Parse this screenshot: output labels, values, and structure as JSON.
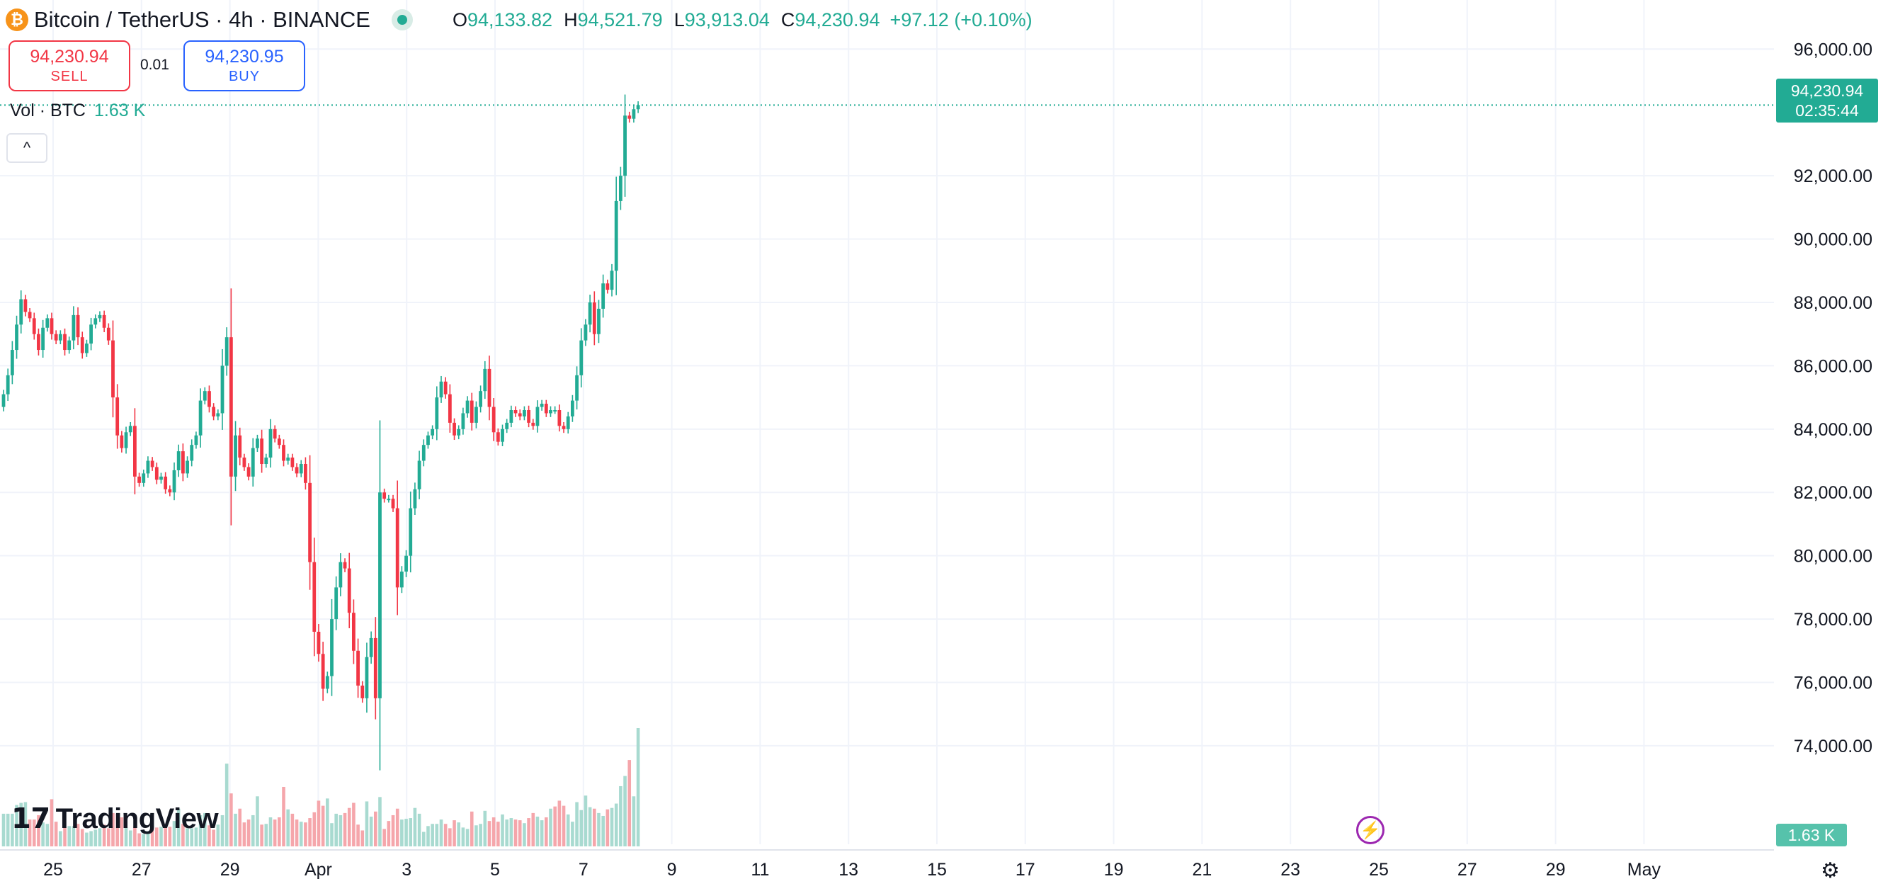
{
  "header": {
    "coin_symbol": "₿",
    "title": "Bitcoin / TetherUS · 4h · BINANCE",
    "ohlc": [
      {
        "key": "O",
        "value": "94,133.82"
      },
      {
        "key": "H",
        "value": "94,521.79"
      },
      {
        "key": "L",
        "value": "93,913.04"
      },
      {
        "key": "C",
        "value": "94,230.94"
      }
    ],
    "change": "+97.12 (+0.10%)"
  },
  "trade": {
    "sell_price": "94,230.94",
    "sell_label": "SELL",
    "spread": "0.01",
    "buy_price": "94,230.95",
    "buy_label": "BUY"
  },
  "volume_legend": {
    "label": "Vol · BTC",
    "value": "1.63 K"
  },
  "collapse_icon": "^",
  "logo": {
    "mark": "𝟭𝟳",
    "text": "TradingView"
  },
  "price_tag": {
    "price": "94,230.94",
    "countdown": "02:35:44"
  },
  "volume_tag": "1.63 K",
  "settings_icon": "⚙",
  "bolt_icon": "⚡",
  "colors": {
    "up": "#22ab94",
    "down": "#f23645",
    "up_vol": "#a8dad0",
    "down_vol": "#f5a6ab",
    "grid": "#f0f3fa"
  },
  "chart_data": {
    "type": "candlestick",
    "interval": "4h",
    "ylim": [
      72500,
      96700
    ],
    "y_ticks": [
      "96,000.00",
      "92,000.00",
      "90,000.00",
      "88,000.00",
      "86,000.00",
      "84,000.00",
      "82,000.00",
      "80,000.00",
      "78,000.00",
      "76,000.00",
      "74,000.00"
    ],
    "x_ticks": [
      "25",
      "27",
      "29",
      "Apr",
      "3",
      "5",
      "7",
      "9",
      "11",
      "13",
      "15",
      "17",
      "19",
      "21",
      "23",
      "25",
      "27",
      "29",
      "May"
    ],
    "last_price": 94230.94,
    "closes": [
      85100,
      85700,
      86500,
      87300,
      88100,
      87700,
      87500,
      87000,
      86500,
      87200,
      87500,
      87000,
      86800,
      87000,
      86500,
      86800,
      87600,
      86900,
      86400,
      86700,
      87300,
      87500,
      87600,
      87200,
      86800,
      85000,
      83800,
      83400,
      83900,
      84100,
      82500,
      82300,
      82600,
      83000,
      82800,
      82400,
      82500,
      82100,
      82000,
      82700,
      83300,
      82600,
      83000,
      83500,
      83800,
      84900,
      85200,
      84700,
      84400,
      84500,
      86000,
      86900,
      82500,
      83800,
      83100,
      82800,
      82500,
      83400,
      83700,
      82900,
      83100,
      84000,
      83700,
      83500,
      83000,
      83100,
      82800,
      82600,
      82900,
      82300,
      79800,
      77600,
      76900,
      75800,
      76200,
      78000,
      79000,
      79800,
      79600,
      78200,
      77000,
      75900,
      75500,
      76800,
      77400,
      75500,
      82000,
      81800,
      81800,
      81500,
      79000,
      79500,
      80000,
      81500,
      82100,
      83000,
      83500,
      83800,
      84000,
      85000,
      85500,
      85100,
      84200,
      83800,
      84000,
      84500,
      84900,
      84200,
      84700,
      85200,
      85900,
      84700,
      83900,
      83600,
      84000,
      84200,
      84600,
      84500,
      84400,
      84600,
      84200,
      84100,
      84700,
      84800,
      84500,
      84600,
      84600,
      84100,
      84000,
      84400,
      84900,
      85700,
      86800,
      87300,
      88000,
      87000,
      87800,
      88600,
      88400,
      89000,
      91200,
      92000,
      93900,
      93800,
      94100,
      94230.94
    ],
    "volumes_k": [
      0.45,
      0.45,
      0.45,
      0.57,
      0.6,
      0.61,
      0.37,
      0.37,
      0.43,
      0.33,
      0.31,
      0.65,
      0.34,
      0.21,
      0.26,
      0.28,
      0.28,
      0.31,
      0.24,
      0.19,
      0.21,
      0.23,
      0.25,
      0.3,
      0.25,
      0.46,
      0.45,
      0.4,
      0.26,
      0.22,
      0.27,
      0.18,
      0.17,
      0.21,
      0.25,
      0.26,
      0.27,
      0.31,
      0.27,
      0.35,
      0.52,
      0.31,
      0.25,
      0.25,
      0.26,
      0.43,
      0.46,
      0.29,
      0.23,
      0.3,
      0.43,
      1.14,
      0.73,
      0.45,
      0.52,
      0.33,
      0.37,
      0.43,
      0.69,
      0.3,
      0.31,
      0.4,
      0.37,
      0.4,
      0.82,
      0.51,
      0.45,
      0.37,
      0.34,
      0.33,
      0.39,
      0.47,
      0.63,
      0.56,
      0.66,
      0.32,
      0.45,
      0.43,
      0.46,
      0.53,
      0.6,
      0.3,
      0.22,
      0.62,
      0.41,
      0.48,
      0.68,
      0.24,
      0.35,
      0.43,
      0.52,
      0.37,
      0.38,
      0.39,
      0.53,
      0.45,
      0.2,
      0.28,
      0.31,
      0.31,
      0.37,
      0.31,
      0.25,
      0.36,
      0.33,
      0.26,
      0.24,
      0.48,
      0.29,
      0.31,
      0.49,
      0.35,
      0.4,
      0.34,
      0.44,
      0.37,
      0.39,
      0.37,
      0.36,
      0.32,
      0.39,
      0.46,
      0.41,
      0.36,
      0.4,
      0.52,
      0.55,
      0.63,
      0.56,
      0.44,
      0.34,
      0.61,
      0.5,
      0.7,
      0.54,
      0.52,
      0.46,
      0.42,
      0.51,
      0.53,
      0.59,
      0.83,
      0.97,
      1.19,
      0.69,
      1.63
    ],
    "volume_colors": [
      "up",
      "up",
      "up",
      "up",
      "up",
      "up",
      "down",
      "down",
      "down",
      "up",
      "up",
      "down",
      "down",
      "up",
      "down",
      "up",
      "up",
      "down",
      "down",
      "up",
      "up",
      "up",
      "up",
      "down",
      "down",
      "down",
      "down",
      "down",
      "up",
      "up",
      "down",
      "down",
      "up",
      "up",
      "down",
      "down",
      "up",
      "down",
      "down",
      "up",
      "up",
      "down",
      "up",
      "up",
      "up",
      "up",
      "up",
      "down",
      "down",
      "up",
      "up",
      "up",
      "down",
      "up",
      "down",
      "down",
      "down",
      "up",
      "up",
      "down",
      "up",
      "up",
      "down",
      "down",
      "down",
      "up",
      "down",
      "down",
      "up",
      "down",
      "down",
      "down",
      "down",
      "down",
      "up",
      "up",
      "up",
      "up",
      "down",
      "down",
      "down",
      "down",
      "down",
      "up",
      "up",
      "down",
      "up",
      "down",
      "down",
      "down",
      "down",
      "up",
      "up",
      "up",
      "up",
      "up",
      "up",
      "up",
      "up",
      "up",
      "up",
      "down",
      "down",
      "down",
      "up",
      "up",
      "up",
      "down",
      "up",
      "up",
      "up",
      "down",
      "down",
      "down",
      "up",
      "up",
      "up",
      "down",
      "down",
      "up",
      "down",
      "down",
      "up",
      "up",
      "down",
      "up",
      "down",
      "down",
      "down",
      "up",
      "up",
      "up",
      "up",
      "up",
      "up",
      "down",
      "up",
      "up",
      "down",
      "up",
      "up",
      "up",
      "up",
      "down",
      "up",
      "up"
    ]
  }
}
